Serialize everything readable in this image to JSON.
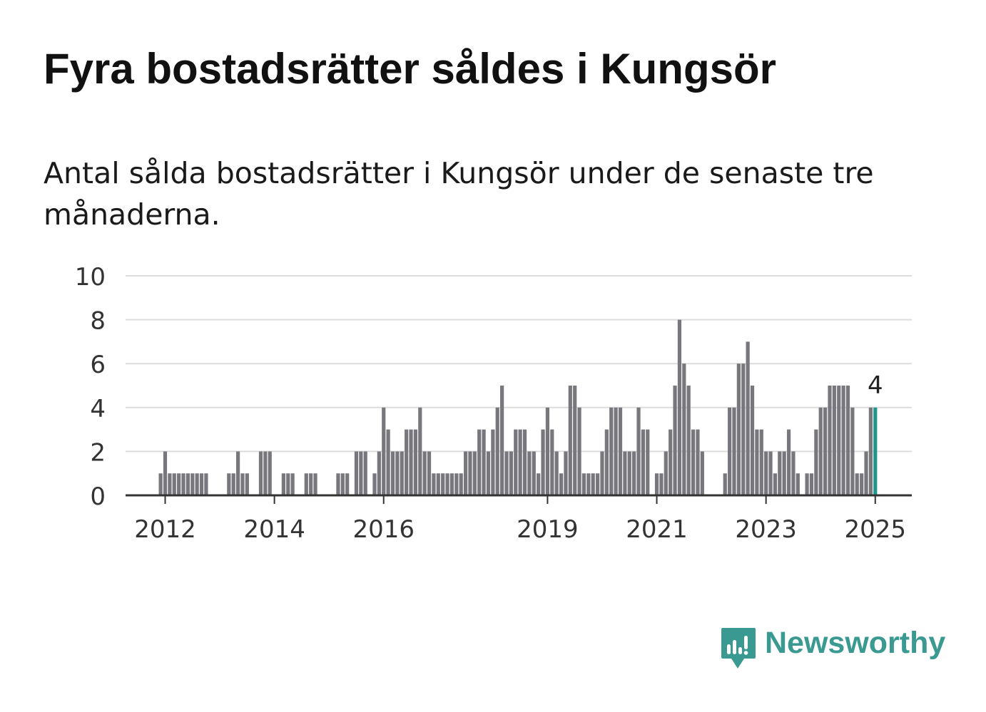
{
  "title": "Fyra bostadsrätter såldes i Kungsör",
  "subtitle": "Antal sålda bostadsrätter i Kungsör under de senaste tre månaderna.",
  "brand": "Newsworthy",
  "colors": {
    "bar": "#77777d",
    "highlight": "#20958e",
    "grid": "#dcdcdc",
    "axis": "#333333",
    "text": "#333333",
    "brand": "#3a9a92"
  },
  "chart_data": {
    "type": "bar",
    "ylim": [
      0,
      10
    ],
    "yticks": [
      0,
      2,
      4,
      6,
      8,
      10
    ],
    "grid": true,
    "xticks": [
      {
        "label": "2012",
        "index": 8
      },
      {
        "label": "2014",
        "index": 32
      },
      {
        "label": "2016",
        "index": 56
      },
      {
        "label": "2019",
        "index": 92
      },
      {
        "label": "2021",
        "index": 116
      },
      {
        "label": "2023",
        "index": 140
      },
      {
        "label": "2025",
        "index": 164
      }
    ],
    "highlight_index": 164,
    "annotation": {
      "index": 164,
      "text": "4"
    },
    "values": [
      0,
      0,
      0,
      0,
      0,
      0,
      0,
      1,
      2,
      1,
      1,
      1,
      1,
      1,
      1,
      1,
      1,
      1,
      0,
      0,
      0,
      0,
      1,
      1,
      2,
      1,
      1,
      0,
      0,
      2,
      2,
      2,
      0,
      0,
      1,
      1,
      1,
      0,
      0,
      1,
      1,
      1,
      0,
      0,
      0,
      0,
      1,
      1,
      1,
      0,
      2,
      2,
      2,
      0,
      1,
      2,
      4,
      3,
      2,
      2,
      2,
      3,
      3,
      3,
      4,
      2,
      2,
      1,
      1,
      1,
      1,
      1,
      1,
      1,
      2,
      2,
      2,
      3,
      3,
      2,
      3,
      4,
      5,
      2,
      2,
      3,
      3,
      3,
      2,
      2,
      1,
      3,
      4,
      3,
      2,
      1,
      2,
      5,
      5,
      4,
      1,
      1,
      1,
      1,
      2,
      3,
      4,
      4,
      4,
      2,
      2,
      2,
      4,
      3,
      3,
      0,
      1,
      1,
      2,
      3,
      5,
      8,
      6,
      5,
      3,
      3,
      2,
      0,
      0,
      0,
      0,
      1,
      4,
      4,
      6,
      6,
      7,
      5,
      3,
      3,
      2,
      2,
      1,
      2,
      2,
      3,
      2,
      1,
      0,
      1,
      1,
      3,
      4,
      4,
      5,
      5,
      5,
      5,
      5,
      4,
      1,
      1,
      2,
      4,
      4
    ]
  }
}
